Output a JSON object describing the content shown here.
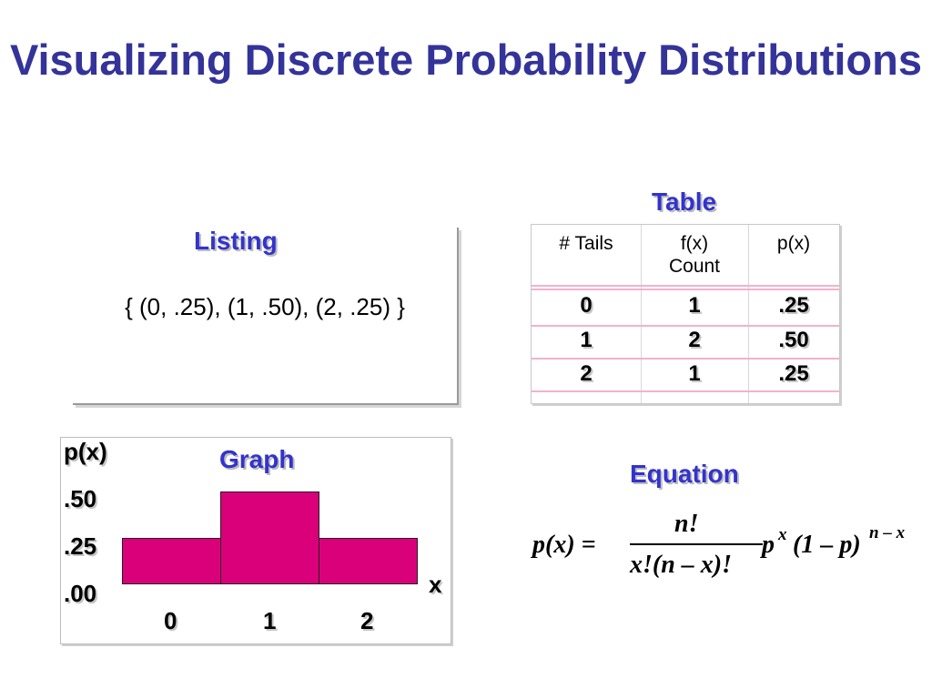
{
  "slide": {
    "title": "Visualizing Discrete Probability Distributions"
  },
  "listing": {
    "heading": "Listing",
    "text": "{ (0, .25), (1, .50), (2, .25) }"
  },
  "table": {
    "heading": "Table",
    "columns": [
      "# Tails",
      "f(x)\nCount",
      "p(x)"
    ],
    "rows": [
      [
        "0",
        "1",
        ".25"
      ],
      [
        "1",
        "2",
        ".50"
      ],
      [
        "2",
        "1",
        ".25"
      ]
    ]
  },
  "graph": {
    "heading": "Graph",
    "ylabel": "p(x)",
    "xlabel": "x",
    "y_ticks": [
      ".50",
      ".25",
      ".00"
    ],
    "x_ticks": [
      "0",
      "1",
      "2"
    ],
    "bar_color": "#d9007a"
  },
  "equation": {
    "heading": "Equation",
    "lhs": "p(x) =",
    "numerator": "n!",
    "denominator": "x!(n – x)!",
    "factor": "p",
    "factor_exp": "x",
    "paren": "(1 – p)",
    "paren_exp": "n – x"
  },
  "chart_data": {
    "type": "bar",
    "categories": [
      "0",
      "1",
      "2"
    ],
    "values": [
      0.25,
      0.5,
      0.25
    ],
    "title": "Graph",
    "xlabel": "x",
    "ylabel": "p(x)",
    "ylim": [
      0,
      0.5
    ],
    "y_tick_labels": [
      ".00",
      ".25",
      ".50"
    ],
    "grid": false
  }
}
